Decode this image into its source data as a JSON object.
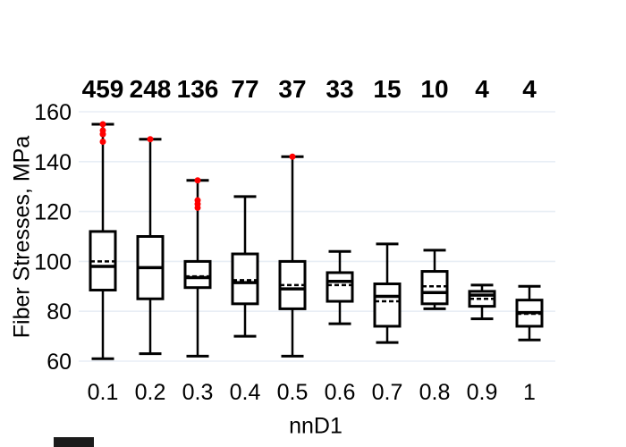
{
  "chart_data": {
    "type": "boxplot",
    "title": "",
    "xlabel": "nnD1",
    "ylabel": "Fiber Stresses, MPa",
    "ylim": [
      60,
      160
    ],
    "yticks": [
      60,
      80,
      100,
      120,
      140,
      160
    ],
    "grid": "horizontal-light",
    "categories": [
      "0.1",
      "0.2",
      "0.3",
      "0.4",
      "0.5",
      "0.6",
      "0.7",
      "0.8",
      "0.9",
      "1"
    ],
    "counts": [
      459,
      248,
      136,
      77,
      37,
      33,
      15,
      10,
      4,
      4
    ],
    "boxes": [
      {
        "low": 61,
        "q1": 88.5,
        "median": 98,
        "mean": 100,
        "q3": 112,
        "high": 155,
        "outliers": [
          155,
          152.5,
          151,
          148
        ]
      },
      {
        "low": 63,
        "q1": 85,
        "median": 97.5,
        "mean": 97.5,
        "q3": 110,
        "high": 149,
        "outliers": [
          149
        ]
      },
      {
        "low": 62,
        "q1": 89.5,
        "median": 93.5,
        "mean": 94,
        "q3": 100,
        "high": 132.5,
        "outliers": [
          132.5,
          124.5,
          123,
          121.5
        ]
      },
      {
        "low": 70,
        "q1": 83,
        "median": 91.5,
        "mean": 92.5,
        "q3": 103,
        "high": 126,
        "outliers": []
      },
      {
        "low": 62,
        "q1": 81,
        "median": 89,
        "mean": 90.5,
        "q3": 100,
        "high": 142,
        "outliers": [
          142
        ]
      },
      {
        "low": 75,
        "q1": 84,
        "median": 92,
        "mean": 90.5,
        "q3": 95.5,
        "high": 104,
        "outliers": []
      },
      {
        "low": 67.5,
        "q1": 74,
        "median": 86,
        "mean": 84,
        "q3": 91,
        "high": 107,
        "outliers": []
      },
      {
        "low": 81,
        "q1": 83,
        "median": 87.5,
        "mean": 90,
        "q3": 96,
        "high": 104.5,
        "outliers": []
      },
      {
        "low": 77,
        "q1": 82,
        "median": 86.5,
        "mean": 85,
        "q3": 88,
        "high": 90.5,
        "outliers": []
      },
      {
        "low": 68.5,
        "q1": 74,
        "median": 79.5,
        "mean": 79,
        "q3": 84.5,
        "high": 90,
        "outliers": []
      }
    ],
    "colors": {
      "box_stroke": "#000000",
      "box_fill": "#ffffff",
      "median": "#000000",
      "mean_dashed": "#000000",
      "outlier": "#ff0000",
      "gridline": "#e8eef5",
      "text": "#000000"
    }
  }
}
